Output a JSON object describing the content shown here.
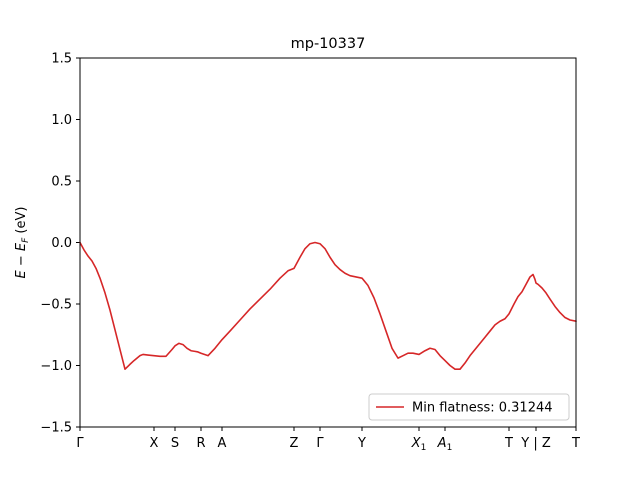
{
  "chart_data": {
    "type": "line",
    "title": "mp-10337",
    "xlabel": "",
    "ylabel": "E − E_F (eV)",
    "ylabel_parts": {
      "base": "E − E",
      "sub": "F",
      "unit": " (eV)"
    },
    "ylim": [
      -1.5,
      1.5
    ],
    "xlim": [
      0,
      496
    ],
    "yticks": [
      -1.5,
      -1.0,
      -0.5,
      0.0,
      0.5,
      1.0,
      1.5
    ],
    "ytick_labels": [
      "−1.5",
      "−1.0",
      "−0.5",
      "0.0",
      "0.5",
      "1.0",
      "1.5"
    ],
    "xticks": [
      {
        "x": 0,
        "label": "Γ"
      },
      {
        "x": 74,
        "label": "X"
      },
      {
        "x": 95,
        "label": "S"
      },
      {
        "x": 121,
        "label": "R"
      },
      {
        "x": 142,
        "label": "A"
      },
      {
        "x": 214,
        "label": "Z"
      },
      {
        "x": 240,
        "label": "Γ"
      },
      {
        "x": 282,
        "label": "Y"
      },
      {
        "x": 339,
        "label": "X",
        "sub": "1"
      },
      {
        "x": 365,
        "label": "A",
        "sub": "1"
      },
      {
        "x": 429,
        "label": "T"
      },
      {
        "x": 456,
        "label": "Y | Z"
      },
      {
        "x": 496,
        "label": "T"
      }
    ],
    "grid": false,
    "legend_position": "lower-right",
    "series": [
      {
        "name": "Min flatness: 0.31244",
        "color": "#d62728",
        "x": [
          0,
          4,
          8,
          12,
          16,
          20,
          25,
          30,
          35,
          40,
          45,
          50,
          54,
          57,
          60,
          63,
          68,
          74,
          80,
          86,
          92,
          95,
          99,
          103,
          107,
          111,
          115,
          118,
          121,
          128,
          135,
          142,
          150,
          160,
          170,
          180,
          190,
          200,
          208,
          214,
          220,
          225,
          230,
          235,
          240,
          245,
          250,
          255,
          260,
          265,
          270,
          276,
          282,
          288,
          294,
          300,
          306,
          312,
          318,
          323,
          328,
          333,
          339,
          345,
          350,
          355,
          360,
          365,
          370,
          375,
          380,
          385,
          390,
          395,
          400,
          405,
          410,
          415,
          420,
          425,
          429,
          434,
          438,
          442,
          446,
          450,
          453,
          455,
          456,
          458,
          462,
          466,
          470,
          475,
          480,
          485,
          490,
          496
        ],
        "y": [
          0.0,
          -0.06,
          -0.11,
          -0.15,
          -0.21,
          -0.29,
          -0.41,
          -0.55,
          -0.71,
          -0.87,
          -1.03,
          -0.99,
          -0.96,
          -0.94,
          -0.92,
          -0.91,
          -0.915,
          -0.92,
          -0.925,
          -0.925,
          -0.87,
          -0.84,
          -0.82,
          -0.83,
          -0.86,
          -0.88,
          -0.885,
          -0.89,
          -0.9,
          -0.92,
          -0.86,
          -0.79,
          -0.72,
          -0.63,
          -0.54,
          -0.46,
          -0.38,
          -0.29,
          -0.23,
          -0.21,
          -0.12,
          -0.05,
          -0.01,
          0.0,
          -0.01,
          -0.05,
          -0.12,
          -0.18,
          -0.22,
          -0.25,
          -0.27,
          -0.28,
          -0.29,
          -0.35,
          -0.45,
          -0.58,
          -0.72,
          -0.86,
          -0.94,
          -0.92,
          -0.9,
          -0.9,
          -0.91,
          -0.88,
          -0.86,
          -0.87,
          -0.92,
          -0.96,
          -1.0,
          -1.03,
          -1.03,
          -0.98,
          -0.92,
          -0.87,
          -0.82,
          -0.77,
          -0.72,
          -0.67,
          -0.64,
          -0.62,
          -0.58,
          -0.5,
          -0.44,
          -0.4,
          -0.34,
          -0.28,
          -0.26,
          -0.3,
          -0.33,
          -0.34,
          -0.37,
          -0.41,
          -0.46,
          -0.52,
          -0.57,
          -0.61,
          -0.63,
          -0.64
        ]
      }
    ]
  }
}
